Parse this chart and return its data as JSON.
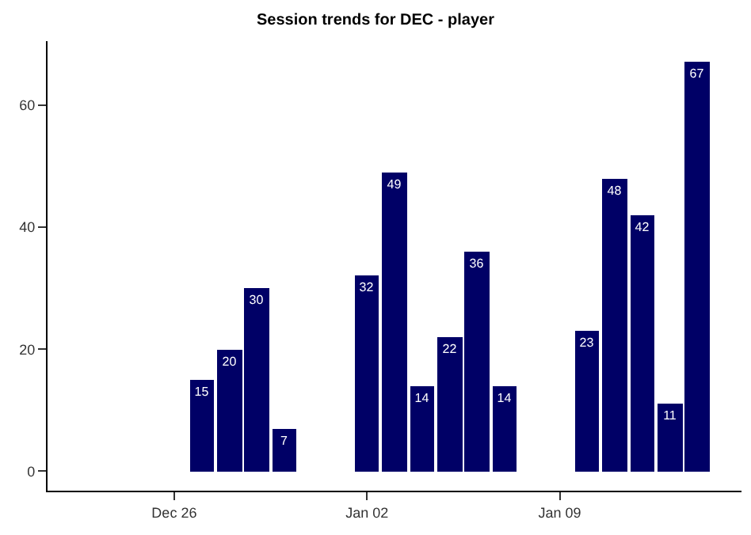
{
  "chart_data": {
    "type": "bar",
    "title": "Session trends for DEC - player",
    "categories": [
      null,
      null,
      null,
      null,
      "Dec 26",
      null,
      null,
      null,
      null,
      null,
      null,
      "Jan 02",
      null,
      null,
      null,
      null,
      null,
      null,
      "Jan 09",
      null,
      null,
      null,
      null,
      null,
      null
    ],
    "values": [
      null,
      null,
      null,
      null,
      null,
      15,
      20,
      30,
      7,
      null,
      null,
      32,
      49,
      14,
      22,
      36,
      14,
      null,
      null,
      23,
      48,
      42,
      11,
      67,
      null
    ],
    "color": "#000066",
    "data_labels": true,
    "ylim": [
      -3.2,
      70.5
    ],
    "yticks": [
      0,
      20,
      40,
      60
    ]
  }
}
